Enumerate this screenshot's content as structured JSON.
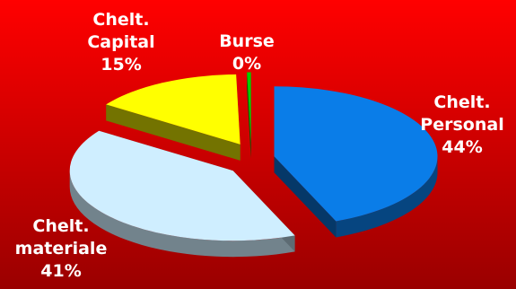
{
  "chart_data": {
    "type": "pie",
    "title": "",
    "series": [
      {
        "name": "Chelt. Personal",
        "label_lines": [
          "Chelt.",
          "Personal"
        ],
        "percent_label": "44%",
        "value": 44,
        "color": "#0a7de8"
      },
      {
        "name": "Chelt. materiale",
        "label_lines": [
          "Chelt.",
          "materiale"
        ],
        "percent_label": "41%",
        "value": 41,
        "color": "#cfeeff"
      },
      {
        "name": "Chelt. Capital",
        "label_lines": [
          "Chelt.",
          "Capital"
        ],
        "percent_label": "15%",
        "value": 15,
        "color": "#ffff00"
      },
      {
        "name": "Burse",
        "label_lines": [
          "Burse"
        ],
        "percent_label": "0%",
        "value": 0.4,
        "color": "#00cc00"
      }
    ],
    "style": "3d-exploded",
    "legend": "none",
    "background": {
      "top": "#ff0000",
      "bottom": "#9a0000"
    }
  }
}
